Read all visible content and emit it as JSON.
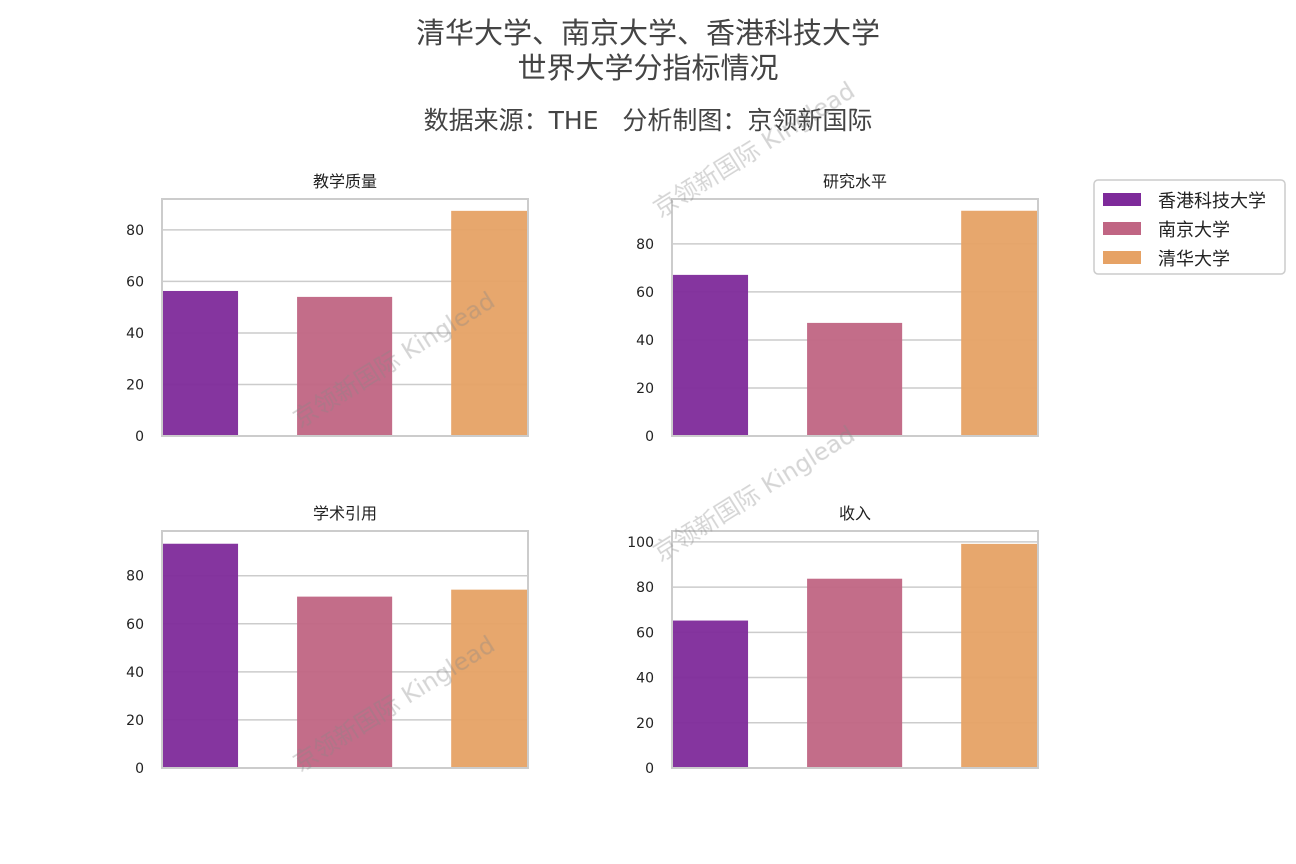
{
  "title_line1": "清华大学、南京大学、香港科技大学",
  "title_line2": "世界大学分指标情况",
  "subtitle": "数据来源：THE   分析制图：京领新国际",
  "watermark": "京领新国际 Kinglead",
  "legend": {
    "placement": "right",
    "items": [
      {
        "label": "香港科技大学",
        "color": "#7e2a9a"
      },
      {
        "label": "南京大学",
        "color": "#c06583"
      },
      {
        "label": "清华大学",
        "color": "#e6a265"
      }
    ]
  },
  "chart_data": [
    {
      "type": "bar",
      "title": "教学质量",
      "categories": [
        "香港科技大学",
        "南京大学",
        "清华大学"
      ],
      "values": [
        56.3,
        54.0,
        87.4
      ],
      "ylim": [
        0,
        92
      ],
      "yticks": [
        "0",
        "20",
        "40",
        "60",
        "80"
      ],
      "grid": true
    },
    {
      "type": "bar",
      "title": "研究水平",
      "categories": [
        "香港科技大学",
        "南京大学",
        "清华大学"
      ],
      "values": [
        67.1,
        47.1,
        93.8
      ],
      "ylim": [
        0,
        98.7
      ],
      "yticks": [
        "0",
        "20",
        "40",
        "60",
        "80"
      ],
      "grid": true
    },
    {
      "type": "bar",
      "title": "学术引用",
      "categories": [
        "香港科技大学",
        "南京大学",
        "清华大学"
      ],
      "values": [
        93.3,
        71.3,
        74.2
      ],
      "ylim": [
        0,
        98.6
      ],
      "yticks": [
        "0",
        "20",
        "40",
        "60",
        "80"
      ],
      "grid": true
    },
    {
      "type": "bar",
      "title": "收入",
      "categories": [
        "香港科技大学",
        "南京大学",
        "清华大学"
      ],
      "values": [
        65.2,
        83.7,
        99.1
      ],
      "ylim": [
        0,
        104.8
      ],
      "yticks": [
        "0",
        "20",
        "40",
        "60",
        "80",
        "100"
      ],
      "grid": true
    }
  ]
}
